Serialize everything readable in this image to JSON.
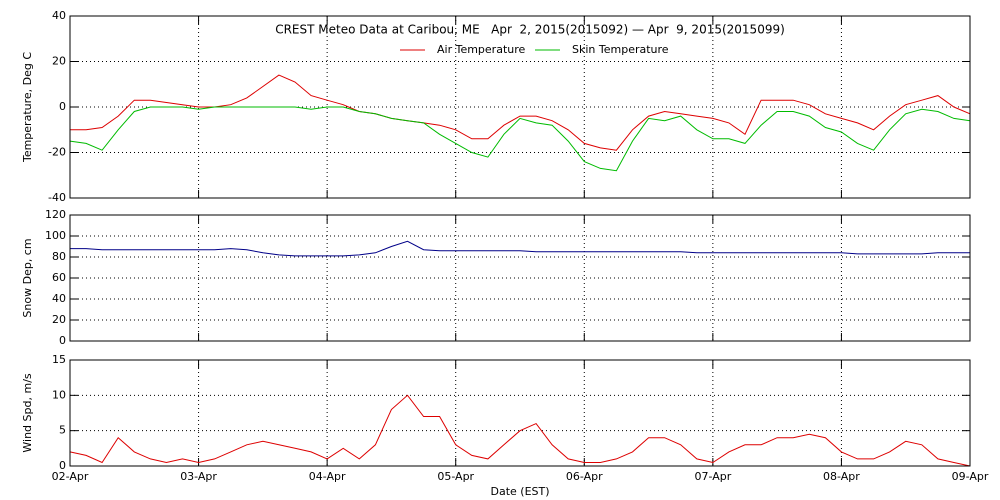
{
  "chart_data": [
    {
      "type": "line",
      "title": "CREST Meteo Data at Caribou, ME   Apr  2, 2015(2015092) — Apr  9, 2015(2015099)",
      "ylabel": "Temperature, Deg C",
      "x": [
        0,
        0.125,
        0.25,
        0.375,
        0.5,
        0.625,
        0.75,
        0.875,
        1,
        1.125,
        1.25,
        1.375,
        1.5,
        1.625,
        1.75,
        1.875,
        2,
        2.125,
        2.25,
        2.375,
        2.5,
        2.625,
        2.75,
        2.875,
        3,
        3.125,
        3.25,
        3.375,
        3.5,
        3.625,
        3.75,
        3.875,
        4,
        4.125,
        4.25,
        4.375,
        4.5,
        4.625,
        4.75,
        4.875,
        5,
        5.125,
        5.25,
        5.375,
        5.5,
        5.625,
        5.75,
        5.875,
        6,
        6.125,
        6.25,
        6.375,
        6.5,
        6.625,
        6.75,
        6.875,
        7
      ],
      "series": [
        {
          "name": "Air Temperature",
          "color": "#dd0000",
          "values": [
            -10,
            -10,
            -9,
            -4,
            3,
            3,
            2,
            1,
            0,
            0,
            1,
            4,
            9,
            14,
            11,
            5,
            3,
            1,
            -2,
            -3,
            -5,
            -6,
            -7,
            -8,
            -10,
            -14,
            -14,
            -8,
            -4,
            -4,
            -6,
            -10,
            -16,
            -18,
            -19,
            -10,
            -4,
            -2,
            -3,
            -4,
            -5,
            -7,
            -12,
            3,
            3,
            3,
            1,
            -3,
            -5,
            -7,
            -10,
            -4,
            1,
            3,
            5,
            0,
            -3
          ]
        },
        {
          "name": "Skin Temperature",
          "color": "#00bb00",
          "values": [
            -15,
            -16,
            -19,
            -10,
            -2,
            0,
            0,
            0,
            -1,
            0,
            0,
            0,
            0,
            0,
            0,
            -1,
            0,
            0,
            -2,
            -3,
            -5,
            -6,
            -7,
            -12,
            -16,
            -20,
            -22,
            -12,
            -5,
            -7,
            -8,
            -15,
            -24,
            -27,
            -28,
            -15,
            -5,
            -6,
            -4,
            -10,
            -14,
            -14,
            -16,
            -8,
            -2,
            -2,
            -4,
            -9,
            -11,
            -16,
            -19,
            -10,
            -3,
            -1,
            -2,
            -5,
            -6
          ]
        }
      ],
      "xlim": [
        0,
        7
      ],
      "xticks": [
        0,
        1,
        2,
        3,
        4,
        5,
        6,
        7
      ],
      "ylim": [
        -40,
        40
      ],
      "yticks": [
        -40,
        -20,
        0,
        20,
        40
      ],
      "grid": true
    },
    {
      "type": "line",
      "ylabel": "Snow Dep, cm",
      "x": [
        0,
        0.125,
        0.25,
        0.375,
        0.5,
        0.625,
        0.75,
        0.875,
        1,
        1.125,
        1.25,
        1.375,
        1.5,
        1.625,
        1.75,
        1.875,
        2,
        2.125,
        2.25,
        2.375,
        2.5,
        2.625,
        2.75,
        2.875,
        3,
        3.125,
        3.25,
        3.375,
        3.5,
        3.625,
        3.75,
        3.875,
        4,
        4.125,
        4.25,
        4.375,
        4.5,
        4.625,
        4.75,
        4.875,
        5,
        5.125,
        5.25,
        5.375,
        5.5,
        5.625,
        5.75,
        5.875,
        6,
        6.125,
        6.25,
        6.375,
        6.5,
        6.625,
        6.75,
        6.875,
        7
      ],
      "color": "#000088",
      "values": [
        88,
        88,
        87,
        87,
        87,
        87,
        87,
        87,
        87,
        87,
        88,
        87,
        84,
        82,
        81,
        81,
        81,
        81,
        82,
        84,
        90,
        95,
        87,
        86,
        86,
        86,
        86,
        86,
        86,
        85,
        85,
        85,
        85,
        85,
        85,
        85,
        85,
        85,
        85,
        84,
        84,
        84,
        84,
        84,
        84,
        84,
        84,
        84,
        84,
        83,
        83,
        83,
        83,
        83,
        84,
        84,
        84
      ],
      "xlim": [
        0,
        7
      ],
      "xticks": [
        0,
        1,
        2,
        3,
        4,
        5,
        6,
        7
      ],
      "ylim": [
        0,
        120
      ],
      "yticks": [
        0,
        20,
        40,
        60,
        80,
        100,
        120
      ],
      "grid": true
    },
    {
      "type": "line",
      "ylabel": "Wind Spd, m/s",
      "xlabel": "Date (EST)",
      "x": [
        0,
        0.125,
        0.25,
        0.375,
        0.5,
        0.625,
        0.75,
        0.875,
        1,
        1.125,
        1.25,
        1.375,
        1.5,
        1.625,
        1.75,
        1.875,
        2,
        2.125,
        2.25,
        2.375,
        2.5,
        2.625,
        2.75,
        2.875,
        3,
        3.125,
        3.25,
        3.375,
        3.5,
        3.625,
        3.75,
        3.875,
        4,
        4.125,
        4.25,
        4.375,
        4.5,
        4.625,
        4.75,
        4.875,
        5,
        5.125,
        5.25,
        5.375,
        5.5,
        5.625,
        5.75,
        5.875,
        6,
        6.125,
        6.25,
        6.375,
        6.5,
        6.625,
        6.75,
        6.875,
        7
      ],
      "color": "#dd0000",
      "values": [
        2,
        1.5,
        0.5,
        4,
        2,
        1,
        0.5,
        1,
        0.5,
        1,
        2,
        3,
        3.5,
        3,
        2.5,
        2,
        1,
        2.5,
        1,
        3,
        8,
        10,
        7,
        7,
        3,
        1.5,
        1,
        3,
        5,
        6,
        3,
        1,
        0.5,
        0.5,
        1,
        2,
        4,
        4,
        3,
        1,
        0.5,
        2,
        3,
        3,
        4,
        4,
        4.5,
        4,
        2,
        1,
        1,
        2,
        3.5,
        3,
        1,
        0.5,
        0
      ],
      "xlim": [
        0,
        7
      ],
      "xticks": [
        {
          "value": 0,
          "label": "02-Apr"
        },
        {
          "value": 1,
          "label": "03-Apr"
        },
        {
          "value": 2,
          "label": "04-Apr"
        },
        {
          "value": 3,
          "label": "05-Apr"
        },
        {
          "value": 4,
          "label": "06-Apr"
        },
        {
          "value": 5,
          "label": "07-Apr"
        },
        {
          "value": 6,
          "label": "08-Apr"
        },
        {
          "value": 7,
          "label": "09-Apr"
        }
      ],
      "ylim": [
        0,
        15
      ],
      "yticks": [
        0,
        5,
        10,
        15
      ],
      "grid": true
    }
  ]
}
